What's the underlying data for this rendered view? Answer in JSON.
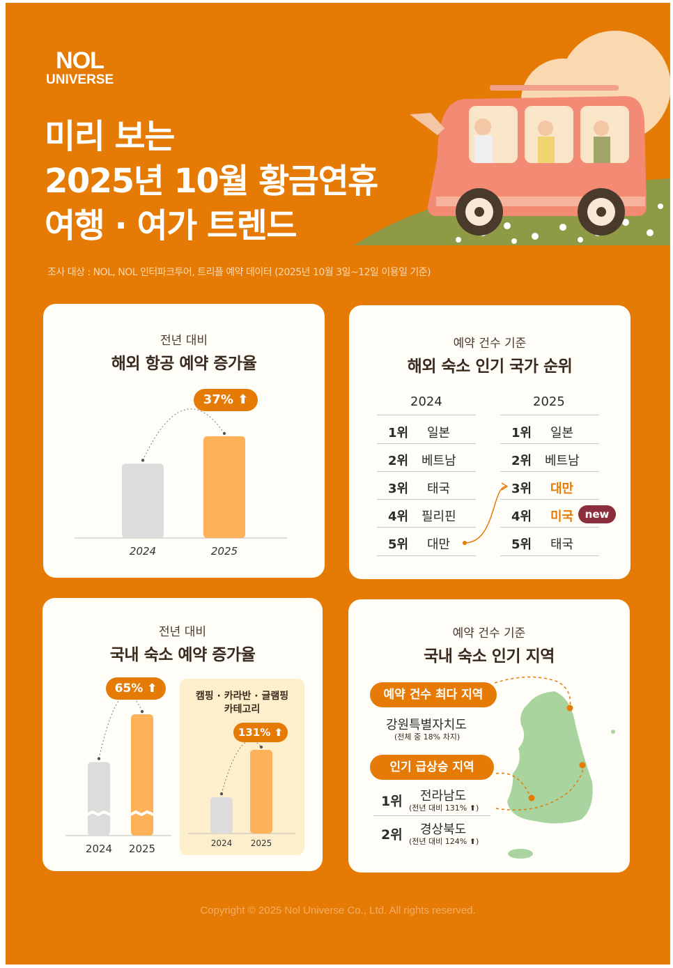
{
  "brand": {
    "line1": "NOL",
    "line2": "UNIVERSE"
  },
  "title": {
    "line1": "미리 보는",
    "line2": "2025년 10월 황금연휴",
    "line3": "여행 · 여가 트렌드"
  },
  "source_note": "조사 대상 : NOL, NOL 인터파크투어, 트리플 예약 데이터 (2025년 10월 3일~12일 이용일 기준)",
  "colors": {
    "background": "#E57A05",
    "card": "#FFFDF7",
    "bar_prev": "#DCDCDC",
    "bar_curr": "#FDB25A",
    "accent": "#E57A05",
    "new_badge": "#8C2E3C",
    "map": "#A9D4A0"
  },
  "flight_card": {
    "subtitle": "전년 대비",
    "title": "해외 항공 예약 증가율",
    "badge": "37%"
  },
  "ranking_card": {
    "subtitle": "예약 건수 기준",
    "title": "해외 숙소 인기 국가 순위",
    "col_2024": "2024",
    "col_2025": "2025",
    "rows_2024": [
      {
        "rank": "1위",
        "country": "일본"
      },
      {
        "rank": "2위",
        "country": "베트남"
      },
      {
        "rank": "3위",
        "country": "태국"
      },
      {
        "rank": "4위",
        "country": "필리핀"
      },
      {
        "rank": "5위",
        "country": "대만"
      }
    ],
    "rows_2025": [
      {
        "rank": "1위",
        "country": "일본"
      },
      {
        "rank": "2위",
        "country": "베트남"
      },
      {
        "rank": "3위",
        "country": "대만"
      },
      {
        "rank": "4위",
        "country": "미국"
      },
      {
        "rank": "5위",
        "country": "태국"
      }
    ],
    "new_badge": "new"
  },
  "domestic_card": {
    "subtitle": "전년 대비",
    "title": "국내 숙소 예약 증가율",
    "badge": "65%",
    "inset_title_1": "캠핑 · 카라반 · 글램핑",
    "inset_title_2": "카테고리",
    "inset_badge": "131%"
  },
  "region_card": {
    "subtitle": "예약 건수 기준",
    "title": "국내 숙소 인기 지역",
    "top_label": "예약 건수 최다 지역",
    "top_region": "강원특별자치도",
    "top_share": "(전체 중 18% 차지)",
    "rising_label": "인기 급상승 지역",
    "rising": [
      {
        "rank": "1위",
        "region": "전라남도",
        "note": "(전년 대비 131%"
      },
      {
        "rank": "2위",
        "region": "경상북도",
        "note": "(전년 대비 124%"
      }
    ]
  },
  "chart_data": [
    {
      "type": "bar",
      "title": "해외 항공 예약 증가율",
      "categories": [
        "2024",
        "2025"
      ],
      "values": [
        100,
        137
      ],
      "annotations": [
        "37%"
      ]
    },
    {
      "type": "bar",
      "title": "국내 숙소 예약 증가율",
      "categories": [
        "2024",
        "2025"
      ],
      "values": [
        100,
        165
      ],
      "annotations": [
        "65%"
      ]
    },
    {
      "type": "bar",
      "title": "캠핑 · 카라반 · 글램핑 카테고리",
      "categories": [
        "2024",
        "2025"
      ],
      "values": [
        100,
        231
      ],
      "annotations": [
        "131%"
      ]
    }
  ],
  "copyright": "Copyright © 2025 Nol Universe Co., Ltd. All rights reserved."
}
